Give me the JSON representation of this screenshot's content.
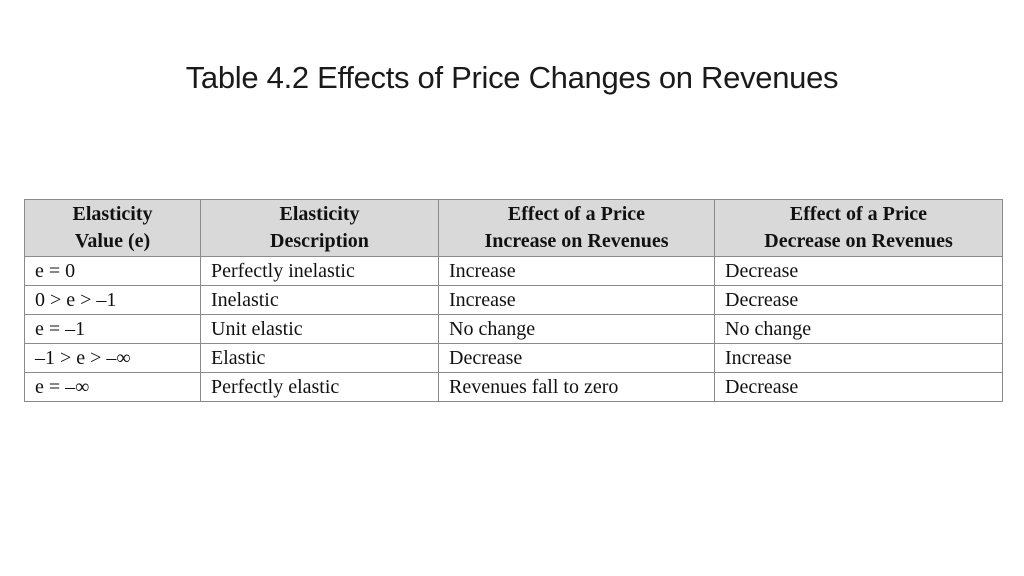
{
  "title": "Table 4.2 Effects of Price Changes on Revenues",
  "table": {
    "headers": [
      {
        "line1": "Elasticity",
        "line2": "Value (e)"
      },
      {
        "line1": "Elasticity",
        "line2": "Description"
      },
      {
        "line1": "Effect of a Price",
        "line2": "Increase on Revenues"
      },
      {
        "line1": "Effect of a Price",
        "line2": "Decrease on Revenues"
      }
    ],
    "rows": [
      [
        "e = 0",
        "Perfectly inelastic",
        "Increase",
        "Decrease"
      ],
      [
        "0 > e > –1",
        "Inelastic",
        "Increase",
        "Decrease"
      ],
      [
        "e = –1",
        "Unit elastic",
        "No change",
        "No change"
      ],
      [
        "–1 > e > –∞",
        "Elastic",
        "Decrease",
        "Increase"
      ],
      [
        "e = –∞",
        "Perfectly elastic",
        "Revenues fall to zero",
        "Decrease"
      ]
    ]
  },
  "colors": {
    "header_background": "#d9d9d9",
    "border": "#8a8a8a",
    "text": "#111111"
  }
}
